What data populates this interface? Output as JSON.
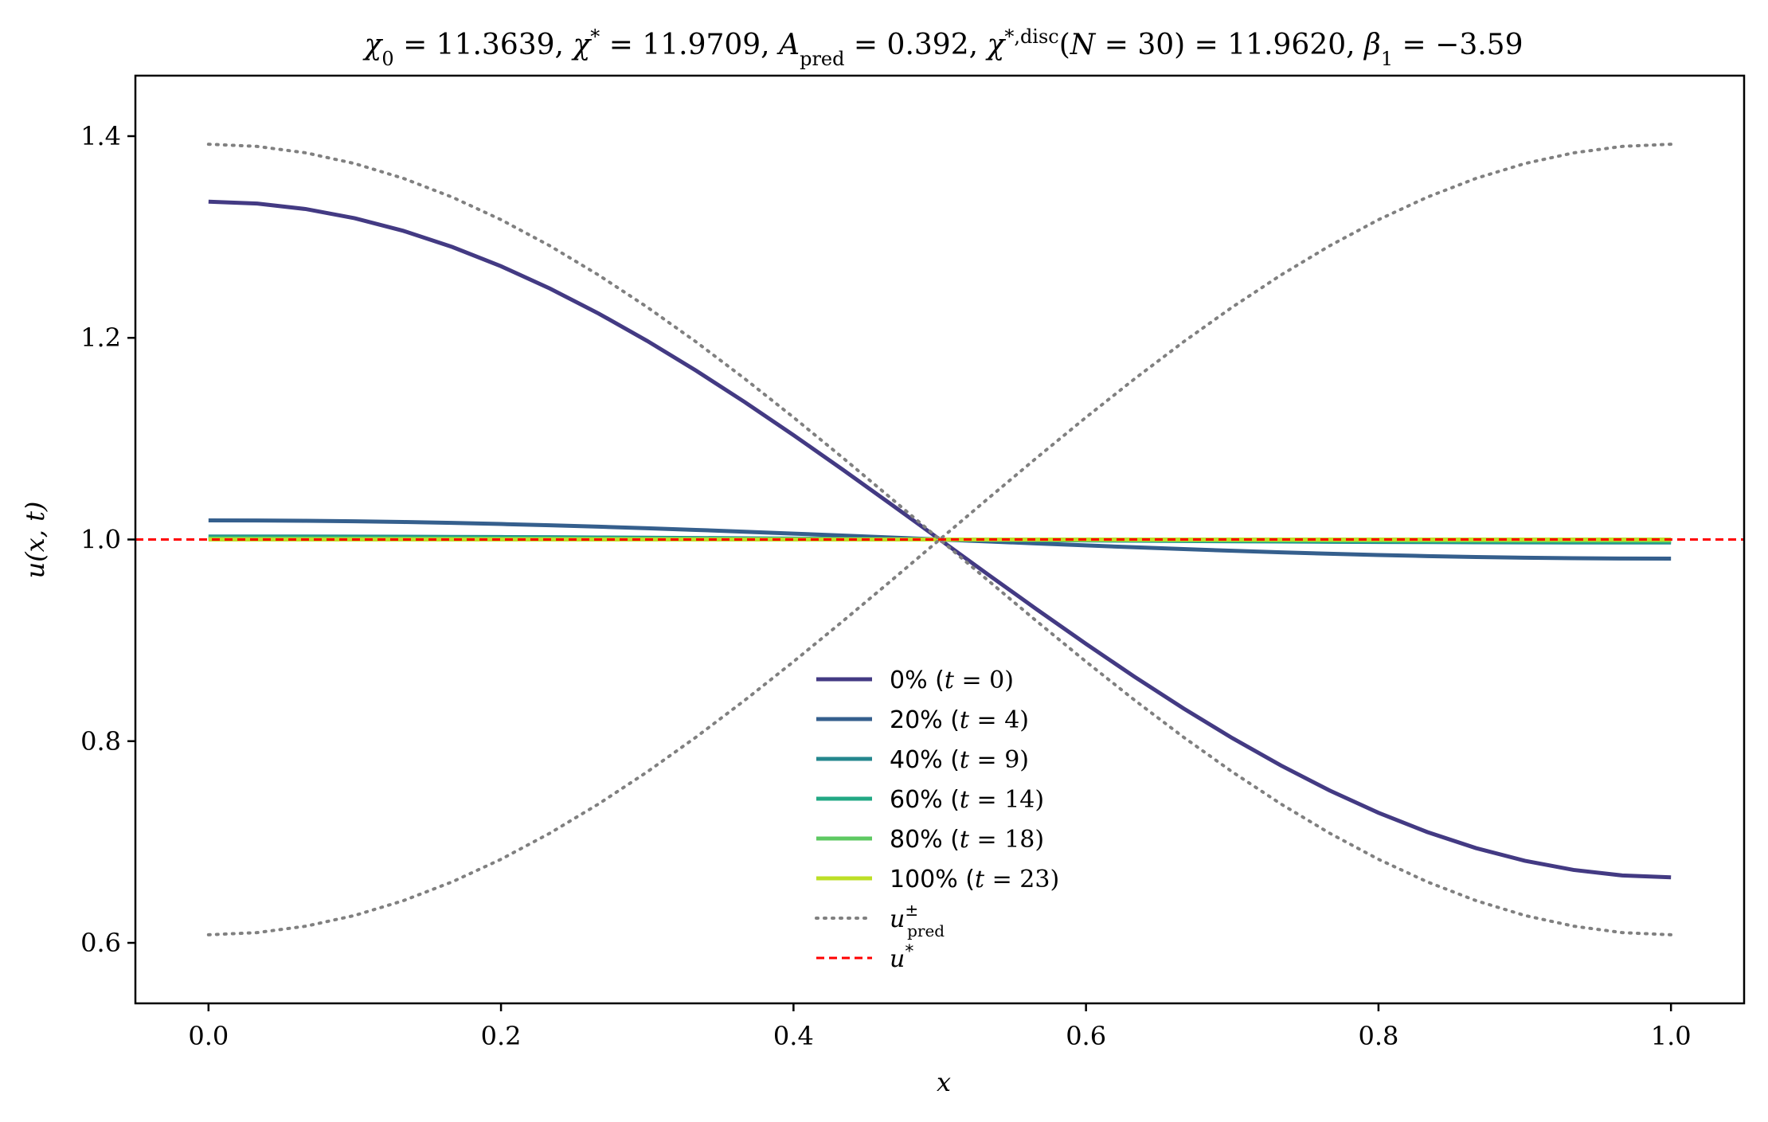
{
  "chart_data": {
    "type": "line",
    "title": "χ₀ = 11.3639,  χ* = 11.9709,  A_pred = 0.392,  χ^{*,disc}(N = 30) = 11.9620,  β₁ = −3.59",
    "xlabel": "x",
    "ylabel": "u(x, t)",
    "xlim": [
      -0.05,
      1.05
    ],
    "ylim": [
      0.54,
      1.46
    ],
    "xticks": [
      0.0,
      0.2,
      0.4,
      0.6,
      0.8,
      1.0
    ],
    "xtick_labels": [
      "0.0",
      "0.2",
      "0.4",
      "0.6",
      "0.8",
      "1.0"
    ],
    "yticks": [
      0.6,
      0.8,
      1.0,
      1.2,
      1.4
    ],
    "ytick_labels": [
      "0.6",
      "0.8",
      "1.0",
      "1.2",
      "1.4"
    ],
    "grid": false,
    "legend_position": "lower-center",
    "series": [
      {
        "name": "0% (t = 0)",
        "color": "#433a83",
        "style": "solid",
        "profile": "cosine",
        "amplitude": 0.335
      },
      {
        "name": "20% (t = 4)",
        "color": "#355f8d",
        "style": "solid",
        "profile": "cosine",
        "amplitude": 0.019
      },
      {
        "name": "40% (t = 9)",
        "color": "#24878e",
        "style": "solid",
        "profile": "cosine",
        "amplitude": 0.003
      },
      {
        "name": "60% (t = 14)",
        "color": "#22a884",
        "style": "solid",
        "profile": "cosine",
        "amplitude": 0.002
      },
      {
        "name": "80% (t = 18)",
        "color": "#5ec962",
        "style": "solid",
        "profile": "cosine",
        "amplitude": 0.001
      },
      {
        "name": "100% (t = 23)",
        "color": "#bddf26",
        "style": "solid",
        "profile": "cosine",
        "amplitude": 0.0
      },
      {
        "name": "u±pred",
        "color": "#808080",
        "style": "dotted",
        "profile": "cosine-pair",
        "amplitude": 0.392
      },
      {
        "name": "u*",
        "color": "#ff0000",
        "style": "dashed",
        "profile": "constant",
        "value": 1.0
      }
    ]
  }
}
